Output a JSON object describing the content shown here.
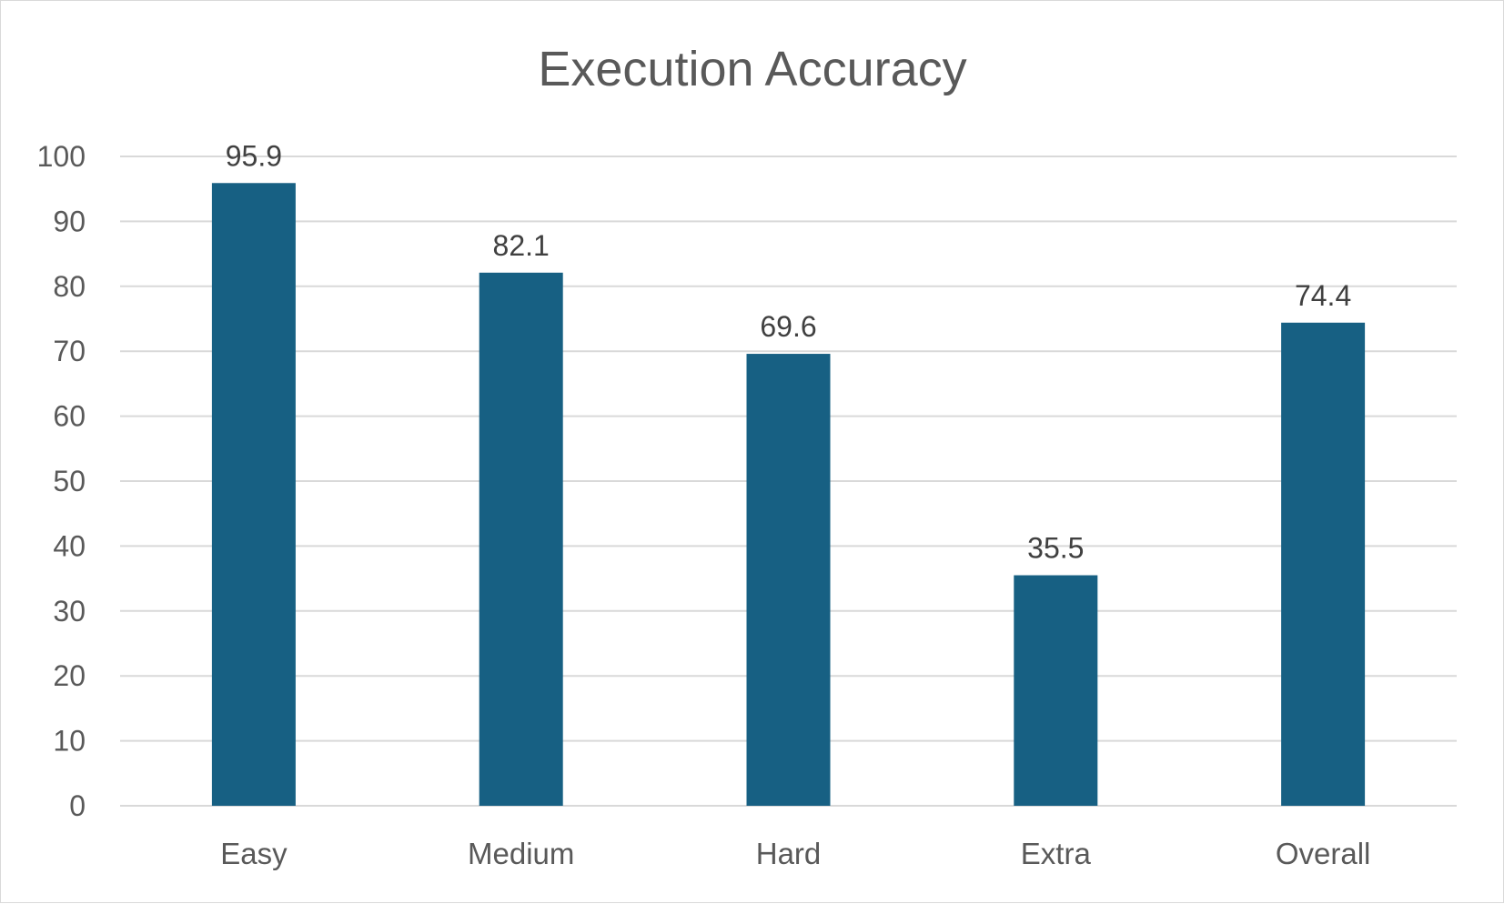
{
  "chart_data": {
    "type": "bar",
    "title": "Execution Accuracy",
    "xlabel": "",
    "ylabel": "",
    "categories": [
      "Easy",
      "Medium",
      "Hard",
      "Extra",
      "Overall"
    ],
    "values": [
      95.9,
      82.1,
      69.6,
      35.5,
      74.4
    ],
    "value_labels": [
      "95.9",
      "82.1",
      "69.6",
      "35.5",
      "74.4"
    ],
    "ylim": [
      0,
      100
    ],
    "yticks": [
      0,
      10,
      20,
      30,
      40,
      50,
      60,
      70,
      80,
      90,
      100
    ],
    "grid": true,
    "legend": "none",
    "colors": {
      "bar": "#176083",
      "grid": "#d9d9d9",
      "axis_text": "#595959",
      "label_text": "#404040"
    }
  }
}
